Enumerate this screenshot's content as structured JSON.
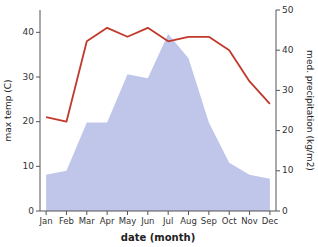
{
  "chart_data": {
    "type": "line",
    "xlabel": "date (month)",
    "ylabel": "max temp (C)",
    "y2label": "med. precipitation (kg/m2)",
    "categories": [
      "Jan",
      "Feb",
      "Mar",
      "Apr",
      "May",
      "Jun",
      "Jul",
      "Aug",
      "Sep",
      "Oct",
      "Nov",
      "Dec"
    ],
    "series": [
      {
        "type": "area",
        "axis": "y2",
        "color": "#b8c0e8",
        "values": [
          9,
          10,
          22,
          22,
          34,
          33,
          44,
          38,
          22,
          12,
          9,
          8
        ]
      },
      {
        "type": "line",
        "color": "#c0392b",
        "values": [
          21,
          20,
          38,
          41,
          39,
          41,
          38,
          39,
          39,
          36,
          29,
          24
        ]
      }
    ],
    "ylim": [
      0,
      45
    ],
    "yticks": [
      0,
      10,
      20,
      30,
      40
    ],
    "y2lim": [
      0,
      50
    ],
    "y2ticks": [
      0,
      10,
      20,
      30,
      40,
      50
    ],
    "grid": false
  }
}
